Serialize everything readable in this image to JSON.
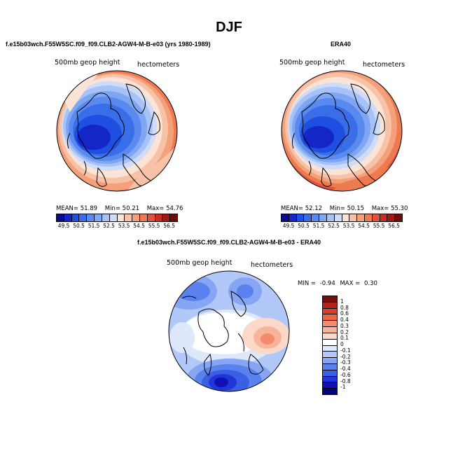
{
  "page": {
    "title": "DJF"
  },
  "panels": [
    {
      "id": "model",
      "heading": "f.e15b03wch.F55W5SC.f09_f09.CLB2-AGW4-M-B-e03 (yrs 1980-1989)",
      "left_label": "500mb geop height",
      "right_label": "hectometers",
      "stats": {
        "mean_label": "MEAN=",
        "mean": "51.89",
        "min_label": "Min=",
        "min": "50.21",
        "max_label": "Max=",
        "max": "54.76"
      },
      "colorbar_ticks": [
        "49.5",
        "50.5",
        "51.5",
        "52.5",
        "53.5",
        "54.5",
        "55.5",
        "56.5"
      ]
    },
    {
      "id": "obs",
      "heading": "ERA40",
      "left_label": "500mb geop height",
      "right_label": "hectometers",
      "stats": {
        "mean_label": "MEAN=",
        "mean": "52.12",
        "min_label": "Min=",
        "min": "50.15",
        "max_label": "Max=",
        "max": "55.30"
      },
      "colorbar_ticks": [
        "49.5",
        "50.5",
        "51.5",
        "52.5",
        "53.5",
        "54.5",
        "55.5",
        "56.5"
      ]
    },
    {
      "id": "diff",
      "heading": "f.e15b03wch.F55W5SC.f09_f09.CLB2-AGW4-M-B-e03 - ERA40",
      "left_label": "500mb geop height",
      "right_label": "hectometers",
      "stats": {
        "min_label": "MIN =",
        "min": "-0.94",
        "max_label": "MAX =",
        "max": "0.30"
      },
      "colorbar_ticks": [
        "1",
        "0.8",
        "0.6",
        "0.4",
        "0.3",
        "0.2",
        "0.1",
        "0",
        "-0.1",
        "-0.2",
        "-0.3",
        "-0.4",
        "-0.6",
        "-0.8",
        "-1"
      ]
    }
  ],
  "chart_data": [
    {
      "type": "heatmap",
      "projection": "north polar stereographic",
      "title": "f.e15b03wch.F55W5SC.f09_f09.CLB2-AGW4-M-B-e03 (yrs 1980-1989)",
      "variable": "500mb geop height",
      "units": "hectometers",
      "mean": 51.89,
      "min": 50.21,
      "max": 54.76,
      "levels": [
        49.5,
        50.0,
        50.5,
        51.0,
        51.5,
        52.0,
        52.5,
        53.0,
        53.5,
        54.0,
        54.5,
        55.0,
        55.5,
        56.0,
        56.5
      ],
      "colors": [
        "#0a0a8c",
        "#1426c8",
        "#1f4fe0",
        "#3a6ee8",
        "#5a8aee",
        "#7fa6f2",
        "#a6c2f6",
        "#cfdcf9",
        "#fbe3d6",
        "#f8c2a6",
        "#f4a07a",
        "#ee7a52",
        "#e0523a",
        "#c92e24",
        "#9e1a14",
        "#6e0a0a"
      ]
    },
    {
      "type": "heatmap",
      "projection": "north polar stereographic",
      "title": "ERA40",
      "variable": "500mb geop height",
      "units": "hectometers",
      "mean": 52.12,
      "min": 50.15,
      "max": 55.3,
      "levels": [
        49.5,
        50.0,
        50.5,
        51.0,
        51.5,
        52.0,
        52.5,
        53.0,
        53.5,
        54.0,
        54.5,
        55.0,
        55.5,
        56.0,
        56.5
      ],
      "colors": [
        "#0a0a8c",
        "#1426c8",
        "#1f4fe0",
        "#3a6ee8",
        "#5a8aee",
        "#7fa6f2",
        "#a6c2f6",
        "#cfdcf9",
        "#fbe3d6",
        "#f8c2a6",
        "#f4a07a",
        "#ee7a52",
        "#e0523a",
        "#c92e24",
        "#9e1a14",
        "#6e0a0a"
      ]
    },
    {
      "type": "heatmap",
      "projection": "north polar stereographic",
      "title": "f.e15b03wch.F55W5SC.f09_f09.CLB2-AGW4-M-B-e03 - ERA40",
      "variable": "500mb geop height",
      "units": "hectometers",
      "min": -0.94,
      "max": 0.3,
      "levels": [
        -1,
        -0.8,
        -0.6,
        -0.4,
        -0.3,
        -0.2,
        -0.1,
        0,
        0.1,
        0.2,
        0.3,
        0.4,
        0.6,
        0.8,
        1
      ],
      "colors": [
        "#04047a",
        "#1010b4",
        "#1f36d8",
        "#3a5ee6",
        "#5a82ee",
        "#86a6f4",
        "#b2c8f8",
        "#dde8fb",
        "#ffffff",
        "#fbd9c8",
        "#f8b49a",
        "#f28c6c",
        "#ea6446",
        "#d6402a",
        "#b0221a",
        "#7a0c08"
      ]
    }
  ]
}
